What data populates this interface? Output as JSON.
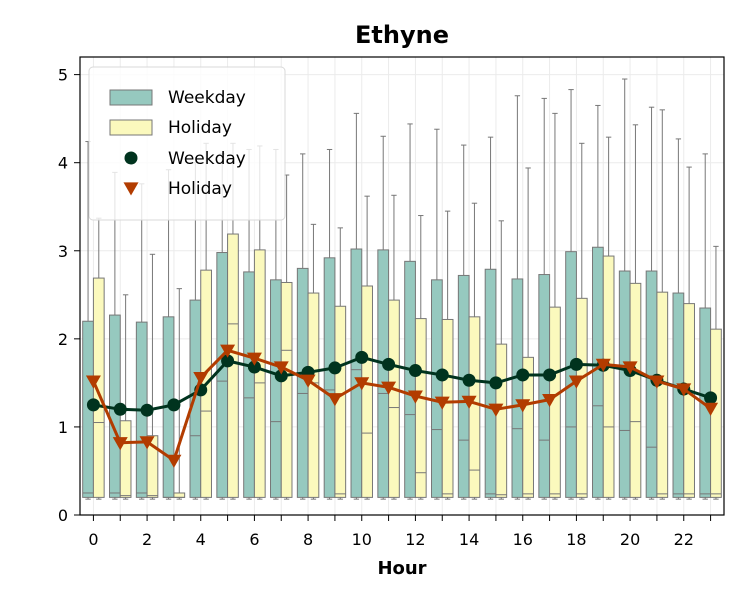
{
  "chart_data": {
    "type": "box",
    "title": "Ethyne",
    "xlabel": "Hour",
    "ylabel": "",
    "xlim": [
      -0.5,
      23.5
    ],
    "ylim": [
      0,
      5.2
    ],
    "x_ticks": [
      0,
      2,
      4,
      6,
      8,
      10,
      12,
      14,
      16,
      18,
      20,
      22
    ],
    "y_ticks": [
      0,
      1,
      2,
      3,
      4,
      5
    ],
    "grid": true,
    "legend_position": "top-left",
    "legend": [
      {
        "label": "Weekday",
        "kind": "box"
      },
      {
        "label": "Holiday",
        "kind": "box"
      },
      {
        "label": "Weekday",
        "kind": "line-circle"
      },
      {
        "label": "Holiday",
        "kind": "line-triangle"
      }
    ],
    "colors": {
      "weekday_box": "#96c9bf",
      "holiday_box": "#fbf9bd",
      "weekday_line": "#00331e",
      "holiday_line": "#b23c00",
      "box_edge": "#777777"
    },
    "hours": [
      0,
      1,
      2,
      3,
      4,
      5,
      6,
      7,
      8,
      9,
      10,
      11,
      12,
      13,
      14,
      15,
      16,
      17,
      18,
      19,
      20,
      21,
      22,
      23
    ],
    "weekday_box": {
      "whislo": [
        0.18,
        0.18,
        0.18,
        0.18,
        0.18,
        0.18,
        0.18,
        0.18,
        0.18,
        0.18,
        0.18,
        0.18,
        0.18,
        0.18,
        0.18,
        0.18,
        0.18,
        0.18,
        0.18,
        0.18,
        0.18,
        0.18,
        0.18,
        0.18
      ],
      "q1": [
        0.2,
        0.2,
        0.2,
        0.2,
        0.2,
        0.2,
        0.2,
        0.2,
        0.2,
        0.2,
        0.2,
        0.2,
        0.2,
        0.2,
        0.2,
        0.2,
        0.2,
        0.2,
        0.2,
        0.2,
        0.2,
        0.2,
        0.2,
        0.2
      ],
      "med": [
        0.25,
        0.25,
        0.25,
        0.2,
        0.9,
        1.52,
        1.33,
        1.06,
        1.38,
        1.42,
        1.65,
        1.38,
        1.14,
        0.97,
        0.85,
        0.24,
        0.98,
        0.85,
        1.0,
        1.24,
        0.96,
        0.77,
        0.24,
        0.24
      ],
      "q3": [
        2.2,
        2.27,
        2.19,
        2.25,
        2.44,
        2.98,
        2.76,
        2.67,
        2.8,
        2.92,
        3.02,
        3.01,
        2.88,
        2.67,
        2.72,
        2.79,
        2.68,
        2.73,
        2.99,
        3.04,
        2.77,
        2.77,
        2.52,
        2.35
      ],
      "whishi": [
        4.24,
        3.89,
        3.76,
        3.92,
        4.0,
        4.1,
        4.15,
        4.15,
        4.1,
        4.15,
        4.56,
        4.3,
        4.44,
        4.38,
        4.2,
        4.29,
        4.76,
        4.73,
        4.83,
        4.65,
        4.95,
        4.63,
        4.27,
        4.1
      ]
    },
    "holiday_box": {
      "whislo": [
        0.18,
        0.18,
        0.18,
        0.18,
        0.18,
        0.18,
        0.18,
        0.18,
        0.18,
        0.18,
        0.18,
        0.18,
        0.18,
        0.18,
        0.18,
        0.18,
        0.18,
        0.18,
        0.18,
        0.18,
        0.18,
        0.18,
        0.18,
        0.18
      ],
      "q1": [
        0.2,
        0.2,
        0.2,
        0.2,
        0.2,
        0.2,
        0.2,
        0.2,
        0.2,
        0.2,
        0.2,
        0.2,
        0.2,
        0.2,
        0.2,
        0.2,
        0.2,
        0.2,
        0.2,
        0.2,
        0.2,
        0.2,
        0.2,
        0.2
      ],
      "med": [
        1.05,
        0.22,
        0.22,
        0.2,
        1.18,
        2.17,
        1.5,
        1.87,
        1.5,
        0.24,
        0.93,
        1.22,
        0.48,
        0.24,
        0.51,
        0.23,
        0.24,
        0.24,
        0.24,
        1.0,
        1.06,
        0.24,
        0.24,
        0.24
      ],
      "q3": [
        2.69,
        1.07,
        0.9,
        0.25,
        2.78,
        3.19,
        3.01,
        2.64,
        2.52,
        2.37,
        2.6,
        2.44,
        2.23,
        2.22,
        2.25,
        1.94,
        1.79,
        2.36,
        2.46,
        2.94,
        2.63,
        2.53,
        2.4,
        2.11
      ],
      "whishi": [
        3.37,
        2.5,
        2.96,
        2.57,
        4.22,
        4.22,
        4.19,
        3.86,
        3.3,
        3.26,
        3.62,
        3.63,
        3.4,
        3.45,
        3.54,
        3.34,
        3.94,
        4.56,
        4.22,
        4.29,
        4.43,
        4.6,
        3.95,
        3.05
      ]
    },
    "series": [
      {
        "name": "Weekday",
        "marker": "circle",
        "values": [
          1.25,
          1.2,
          1.19,
          1.25,
          1.42,
          1.75,
          1.68,
          1.58,
          1.62,
          1.67,
          1.79,
          1.71,
          1.64,
          1.59,
          1.53,
          1.5,
          1.59,
          1.59,
          1.71,
          1.7,
          1.64,
          1.53,
          1.43,
          1.33
        ]
      },
      {
        "name": "Holiday",
        "marker": "triangle-down",
        "values": [
          1.52,
          0.82,
          0.83,
          0.62,
          1.56,
          1.87,
          1.78,
          1.68,
          1.53,
          1.32,
          1.5,
          1.45,
          1.35,
          1.28,
          1.29,
          1.2,
          1.25,
          1.31,
          1.52,
          1.71,
          1.68,
          1.52,
          1.43,
          1.21
        ]
      }
    ]
  }
}
